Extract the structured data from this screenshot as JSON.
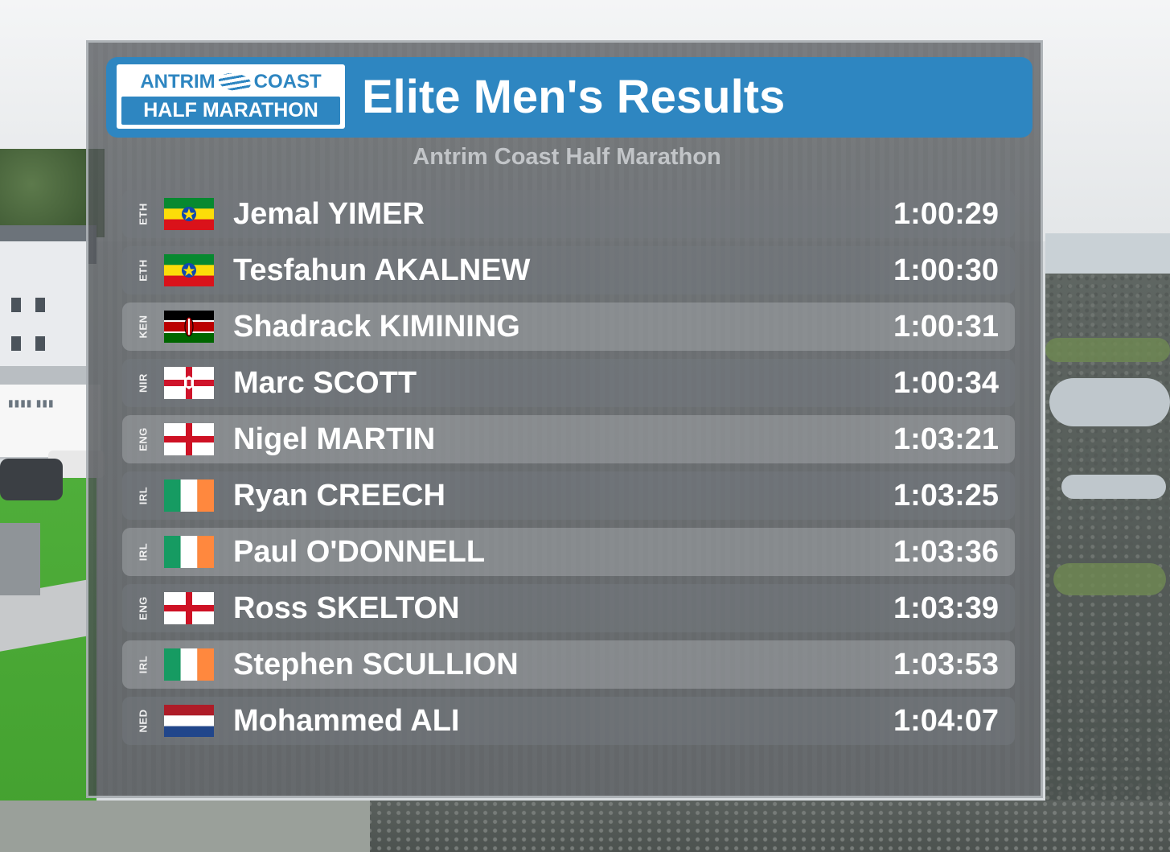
{
  "logo": {
    "line1_left": "ANTRIM",
    "line1_right": "COAST",
    "line2": "HALF MARATHON"
  },
  "header": {
    "title": "Elite Men's Results"
  },
  "subtitle": "Antrim Coast Half Marathon",
  "results": [
    {
      "code": "ETH",
      "flag": "ethiopia-flag",
      "name": "Jemal YIMER",
      "time": "1:00:29"
    },
    {
      "code": "ETH",
      "flag": "ethiopia-flag",
      "name": "Tesfahun AKALNEW",
      "time": "1:00:30"
    },
    {
      "code": "KEN",
      "flag": "kenya-flag",
      "name": "Shadrack KIMINING",
      "time": "1:00:31"
    },
    {
      "code": "NIR",
      "flag": "northern-ireland-flag",
      "name": "Marc SCOTT",
      "time": "1:00:34"
    },
    {
      "code": "ENG",
      "flag": "england-flag",
      "name": "Nigel MARTIN",
      "time": "1:03:21"
    },
    {
      "code": "IRL",
      "flag": "ireland-flag",
      "name": "Ryan CREECH",
      "time": "1:03:25"
    },
    {
      "code": "IRL",
      "flag": "ireland-flag",
      "name": "Paul O'DONNELL",
      "time": "1:03:36"
    },
    {
      "code": "ENG",
      "flag": "england-flag",
      "name": "Ross SKELTON",
      "time": "1:03:39"
    },
    {
      "code": "IRL",
      "flag": "ireland-flag",
      "name": "Stephen SCULLION",
      "time": "1:03:53"
    },
    {
      "code": "NED",
      "flag": "netherlands-flag",
      "name": "Mohammed ALI",
      "time": "1:04:07"
    }
  ],
  "colors": {
    "header_blue": "#2e86c1",
    "text_white": "#ffffff",
    "subtitle_grey": "#c2c5c8"
  }
}
